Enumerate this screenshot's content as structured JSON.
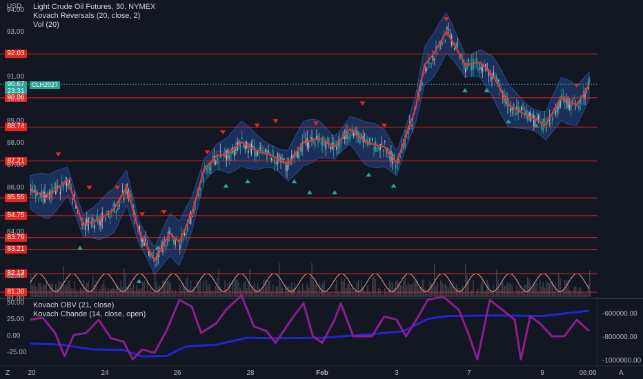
{
  "currency": "USD",
  "legend_main": [
    "Light Crude Oil Futures, 30, NYMEX",
    "Kovach Reversals (20, close, 2)",
    "Vol (20)"
  ],
  "legend_lower": [
    "Kovach OBV (21, close)",
    "Kovach Chande (14, close, open)"
  ],
  "last_price": {
    "price": "90.67",
    "countdown": "23:31",
    "symbol": "CLH2027"
  },
  "corner_left": "Z",
  "corner_right": "A",
  "colors": {
    "background": "#131722",
    "level": "#e3261f",
    "candle_up": "#26a69a",
    "candle_down": "#b2b5be",
    "band": "#1e3a6e",
    "ma": "#e03a3a",
    "reversal_down": "#e3261f",
    "reversal_up": "#26a69a",
    "volume": "#5d606b",
    "oscillator": "#f7a48b",
    "obv": "#2224d8",
    "chande": "#8b1f8f"
  },
  "chart_data": {
    "type": "candlestick",
    "main": {
      "y_range": [
        81.0,
        94.0
      ],
      "y_ticks": [
        "94.00",
        "93.00",
        "91.00",
        "90.00",
        "89.00",
        "88.00",
        "87.00",
        "86.00",
        "84.00",
        "82.00",
        "81.00"
      ],
      "levels": [
        "92.03",
        "90.06",
        "88.74",
        "87.21",
        "85.55",
        "84.75",
        "83.76",
        "83.21",
        "82.13",
        "81.30"
      ],
      "x_ticks": [
        "20",
        "24",
        "26",
        "28",
        "Feb",
        "3",
        "7",
        "9",
        "06:00"
      ],
      "price_path": [
        [
          0,
          85.8
        ],
        [
          6,
          85.6
        ],
        [
          12,
          86.3
        ],
        [
          17,
          84.3
        ],
        [
          22,
          84.5
        ],
        [
          27,
          85.0
        ],
        [
          31,
          86.0
        ],
        [
          35,
          84.0
        ],
        [
          40,
          82.7
        ],
        [
          45,
          83.9
        ],
        [
          48,
          83.5
        ],
        [
          52,
          84.8
        ],
        [
          56,
          86.8
        ],
        [
          60,
          87.4
        ],
        [
          64,
          87.5
        ],
        [
          68,
          88.0
        ],
        [
          73,
          87.6
        ],
        [
          78,
          87.4
        ],
        [
          83,
          87.0
        ],
        [
          88,
          88.0
        ],
        [
          93,
          88.2
        ],
        [
          98,
          87.8
        ],
        [
          103,
          88.6
        ],
        [
          108,
          88.0
        ],
        [
          114,
          87.8
        ],
        [
          118,
          87.1
        ],
        [
          124,
          89.5
        ],
        [
          127,
          91.5
        ],
        [
          130,
          92.0
        ],
        [
          134,
          93.0
        ],
        [
          137,
          92.3
        ],
        [
          140,
          91.5
        ],
        [
          145,
          91.6
        ],
        [
          149,
          91.0
        ],
        [
          154,
          89.7
        ],
        [
          160,
          89.2
        ],
        [
          166,
          88.8
        ],
        [
          171,
          90.0
        ],
        [
          176,
          89.7
        ],
        [
          180,
          90.6
        ]
      ],
      "reversals_down": [
        [
          9,
          87.5
        ],
        [
          19,
          86.0
        ],
        [
          28,
          86.0
        ],
        [
          36,
          84.8
        ],
        [
          43,
          84.9
        ],
        [
          57,
          87.6
        ],
        [
          62,
          88.5
        ],
        [
          73,
          88.8
        ],
        [
          79,
          89.0
        ],
        [
          92,
          88.9
        ],
        [
          107,
          89.8
        ],
        [
          114,
          88.8
        ],
        [
          134,
          93.6
        ],
        [
          176,
          90.6
        ]
      ],
      "reversals_up": [
        [
          16,
          83.3
        ],
        [
          35,
          81.8
        ],
        [
          41,
          83.3
        ],
        [
          63,
          86.1
        ],
        [
          70,
          86.3
        ],
        [
          85,
          86.3
        ],
        [
          90,
          85.8
        ],
        [
          98,
          85.8
        ],
        [
          109,
          86.6
        ],
        [
          117,
          86.1
        ],
        [
          140,
          90.4
        ],
        [
          147,
          90.4
        ],
        [
          154,
          89.0
        ],
        [
          163,
          88.8
        ]
      ],
      "volume_scale": "relative"
    },
    "lower": {
      "y_range_left": [
        -45,
        65
      ],
      "y_ticks_left": [
        "50.00",
        "25.00",
        "0.00",
        "-25.00"
      ],
      "y_range_right": [
        -1100000,
        -480000
      ],
      "y_ticks_right": [
        "-600000.00",
        "-800000.00",
        "-1000000.00"
      ],
      "series": [
        {
          "name": "Kovach OBV (21, close)",
          "axis": "right",
          "values": [
            [
              0,
              -850000
            ],
            [
              10,
              -860000
            ],
            [
              20,
              -900000
            ],
            [
              30,
              -905000
            ],
            [
              36,
              -960000
            ],
            [
              44,
              -955000
            ],
            [
              50,
              -875000
            ],
            [
              60,
              -860000
            ],
            [
              70,
              -800000
            ],
            [
              80,
              -805000
            ],
            [
              95,
              -800000
            ],
            [
              110,
              -770000
            ],
            [
              120,
              -745000
            ],
            [
              128,
              -640000
            ],
            [
              134,
              -615000
            ],
            [
              150,
              -610000
            ],
            [
              165,
              -615000
            ],
            [
              180,
              -570000
            ]
          ]
        },
        {
          "name": "Kovach Chande (14, close, open)",
          "axis": "left",
          "values": [
            [
              0,
              25
            ],
            [
              4,
              28
            ],
            [
              8,
              5
            ],
            [
              11,
              -30
            ],
            [
              14,
              2
            ],
            [
              18,
              5
            ],
            [
              22,
              25
            ],
            [
              26,
              -3
            ],
            [
              30,
              -8
            ],
            [
              33,
              -35
            ],
            [
              36,
              -20
            ],
            [
              40,
              -25
            ],
            [
              44,
              10
            ],
            [
              48,
              55
            ],
            [
              52,
              45
            ],
            [
              55,
              5
            ],
            [
              60,
              20
            ],
            [
              63,
              40
            ],
            [
              68,
              62
            ],
            [
              72,
              15
            ],
            [
              76,
              8
            ],
            [
              79,
              -10
            ],
            [
              84,
              25
            ],
            [
              88,
              50
            ],
            [
              91,
              0
            ],
            [
              94,
              -10
            ],
            [
              98,
              25
            ],
            [
              100,
              50
            ],
            [
              104,
              0
            ],
            [
              110,
              0
            ],
            [
              114,
              30
            ],
            [
              118,
              25
            ],
            [
              121,
              0
            ],
            [
              125,
              30
            ],
            [
              128,
              55
            ],
            [
              133,
              60
            ],
            [
              138,
              40
            ],
            [
              141,
              5
            ],
            [
              144,
              -35
            ],
            [
              148,
              55
            ],
            [
              152,
              40
            ],
            [
              156,
              25
            ],
            [
              158,
              -35
            ],
            [
              161,
              30
            ],
            [
              164,
              20
            ],
            [
              168,
              0
            ],
            [
              172,
              0
            ],
            [
              176,
              25
            ],
            [
              180,
              8
            ]
          ]
        }
      ]
    }
  }
}
